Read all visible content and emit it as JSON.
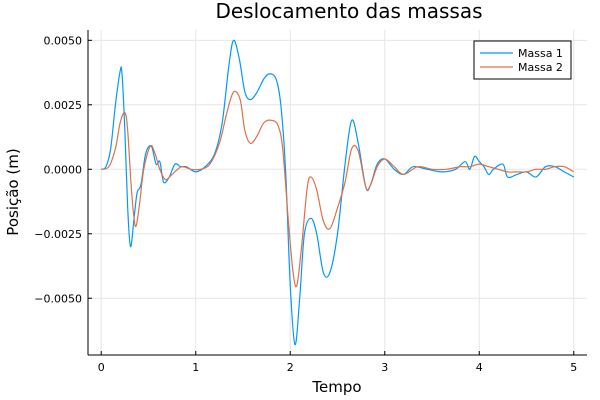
{
  "chart_data": {
    "type": "line",
    "title": "Deslocamento das massas",
    "xlabel": "Tempo",
    "ylabel": "Posição (m)",
    "xlim": [
      -0.14,
      5.14
    ],
    "ylim": [
      -0.0072,
      0.0054
    ],
    "xticks": [
      0,
      1,
      2,
      3,
      4,
      5
    ],
    "xtick_labels": [
      "0",
      "1",
      "2",
      "3",
      "4",
      "5"
    ],
    "yticks": [
      -0.005,
      -0.0025,
      0,
      0.0025,
      0.005
    ],
    "ytick_labels": [
      "−0.0050",
      "−0.0025",
      "0.0000",
      "0.0025",
      "0.0050"
    ],
    "grid": true,
    "legend_position": "top-right",
    "series": [
      {
        "name": "Massa 1",
        "color": "#009af9",
        "points": [
          [
            0,
            0
          ],
          [
            0.05,
            0.0001
          ],
          [
            0.1,
            0.0008
          ],
          [
            0.15,
            0.0025
          ],
          [
            0.2,
            0.0038
          ],
          [
            0.22,
            0.0037
          ],
          [
            0.25,
            0.0015
          ],
          [
            0.28,
            -0.0015
          ],
          [
            0.31,
            -0.003
          ],
          [
            0.35,
            -0.0018
          ],
          [
            0.38,
            -0.0009
          ],
          [
            0.42,
            -0.0006
          ],
          [
            0.47,
            0.0006
          ],
          [
            0.53,
            0.0009
          ],
          [
            0.58,
            0.0002
          ],
          [
            0.62,
            0.0003
          ],
          [
            0.66,
            -0.0005
          ],
          [
            0.72,
            -0.0003
          ],
          [
            0.78,
            0.0002
          ],
          [
            0.84,
            0.0001
          ],
          [
            0.9,
            0.0001
          ],
          [
            1.0,
            -0.0001
          ],
          [
            1.1,
            0.0001
          ],
          [
            1.2,
            0.0006
          ],
          [
            1.28,
            0.0018
          ],
          [
            1.35,
            0.004
          ],
          [
            1.4,
            0.005
          ],
          [
            1.46,
            0.0043
          ],
          [
            1.52,
            0.003
          ],
          [
            1.58,
            0.0027
          ],
          [
            1.65,
            0.003
          ],
          [
            1.72,
            0.0035
          ],
          [
            1.78,
            0.0037
          ],
          [
            1.85,
            0.0035
          ],
          [
            1.9,
            0.0025
          ],
          [
            1.95,
            0.0
          ],
          [
            2.0,
            -0.0045
          ],
          [
            2.05,
            -0.0068
          ],
          [
            2.1,
            -0.005
          ],
          [
            2.15,
            -0.0025
          ],
          [
            2.22,
            -0.0019
          ],
          [
            2.28,
            -0.0025
          ],
          [
            2.35,
            -0.004
          ],
          [
            2.42,
            -0.004
          ],
          [
            2.5,
            -0.0025
          ],
          [
            2.58,
            0.0002
          ],
          [
            2.65,
            0.0019
          ],
          [
            2.72,
            0.001
          ],
          [
            2.8,
            -0.0007
          ],
          [
            2.85,
            -0.0006
          ],
          [
            2.92,
            0.0002
          ],
          [
            3.0,
            0.0004
          ],
          [
            3.1,
            0.0
          ],
          [
            3.2,
            -0.0002
          ],
          [
            3.3,
            0.0001
          ],
          [
            3.45,
            0.0
          ],
          [
            3.6,
            -0.0001
          ],
          [
            3.75,
            0.0
          ],
          [
            3.85,
            0.0003
          ],
          [
            3.9,
            0.0
          ],
          [
            3.95,
            0.0005
          ],
          [
            4.0,
            0.0003
          ],
          [
            4.05,
            0.0001
          ],
          [
            4.1,
            -0.0002
          ],
          [
            4.15,
            0.0
          ],
          [
            4.25,
            0.0002
          ],
          [
            4.3,
            -0.0003
          ],
          [
            4.4,
            -0.0002
          ],
          [
            4.5,
            -0.0001
          ],
          [
            4.6,
            -0.0003
          ],
          [
            4.7,
            0.0001
          ],
          [
            4.8,
            0.0001
          ],
          [
            4.9,
            -0.0001
          ],
          [
            5.0,
            -0.0003
          ]
        ]
      },
      {
        "name": "Massa 2",
        "color": "#e26f46",
        "points": [
          [
            0,
            0
          ],
          [
            0.08,
            0.0001
          ],
          [
            0.15,
            0.0008
          ],
          [
            0.2,
            0.0018
          ],
          [
            0.25,
            0.0022
          ],
          [
            0.28,
            0.0015
          ],
          [
            0.32,
            -0.0008
          ],
          [
            0.36,
            -0.0022
          ],
          [
            0.4,
            -0.0015
          ],
          [
            0.45,
            0.0
          ],
          [
            0.52,
            0.0009
          ],
          [
            0.57,
            0.0006
          ],
          [
            0.62,
            0.0
          ],
          [
            0.68,
            -0.0004
          ],
          [
            0.75,
            -0.0002
          ],
          [
            0.85,
            0.0001
          ],
          [
            0.95,
            0.0
          ],
          [
            1.05,
            0.0
          ],
          [
            1.15,
            0.0002
          ],
          [
            1.25,
            0.001
          ],
          [
            1.33,
            0.0022
          ],
          [
            1.4,
            0.003
          ],
          [
            1.47,
            0.0027
          ],
          [
            1.52,
            0.0015
          ],
          [
            1.58,
            0.001
          ],
          [
            1.65,
            0.0013
          ],
          [
            1.72,
            0.0018
          ],
          [
            1.8,
            0.0019
          ],
          [
            1.87,
            0.0017
          ],
          [
            1.92,
            0.0008
          ],
          [
            1.98,
            -0.002
          ],
          [
            2.03,
            -0.004
          ],
          [
            2.07,
            -0.0045
          ],
          [
            2.12,
            -0.003
          ],
          [
            2.18,
            -0.0007
          ],
          [
            2.22,
            -0.0003
          ],
          [
            2.28,
            -0.0008
          ],
          [
            2.35,
            -0.002
          ],
          [
            2.42,
            -0.0023
          ],
          [
            2.5,
            -0.0015
          ],
          [
            2.58,
            -0.0005
          ],
          [
            2.65,
            0.0008
          ],
          [
            2.72,
            0.0007
          ],
          [
            2.8,
            -0.0007
          ],
          [
            2.85,
            -0.0006
          ],
          [
            2.92,
            0.0001
          ],
          [
            3.0,
            0.0004
          ],
          [
            3.1,
            0.0001
          ],
          [
            3.2,
            -0.0002
          ],
          [
            3.35,
            0.0001
          ],
          [
            3.5,
            0.0
          ],
          [
            3.65,
            0.0
          ],
          [
            3.8,
            0.0001
          ],
          [
            3.9,
            0.0001
          ],
          [
            4.0,
            0.0002
          ],
          [
            4.1,
            0.0001
          ],
          [
            4.2,
            0.0
          ],
          [
            4.3,
            -0.0001
          ],
          [
            4.4,
            -0.0001
          ],
          [
            4.5,
            -0.0001
          ],
          [
            4.6,
            0.0
          ],
          [
            4.7,
            0.0
          ],
          [
            4.8,
            0.0001
          ],
          [
            4.9,
            0.0001
          ],
          [
            5.0,
            -0.0001
          ]
        ]
      }
    ]
  }
}
